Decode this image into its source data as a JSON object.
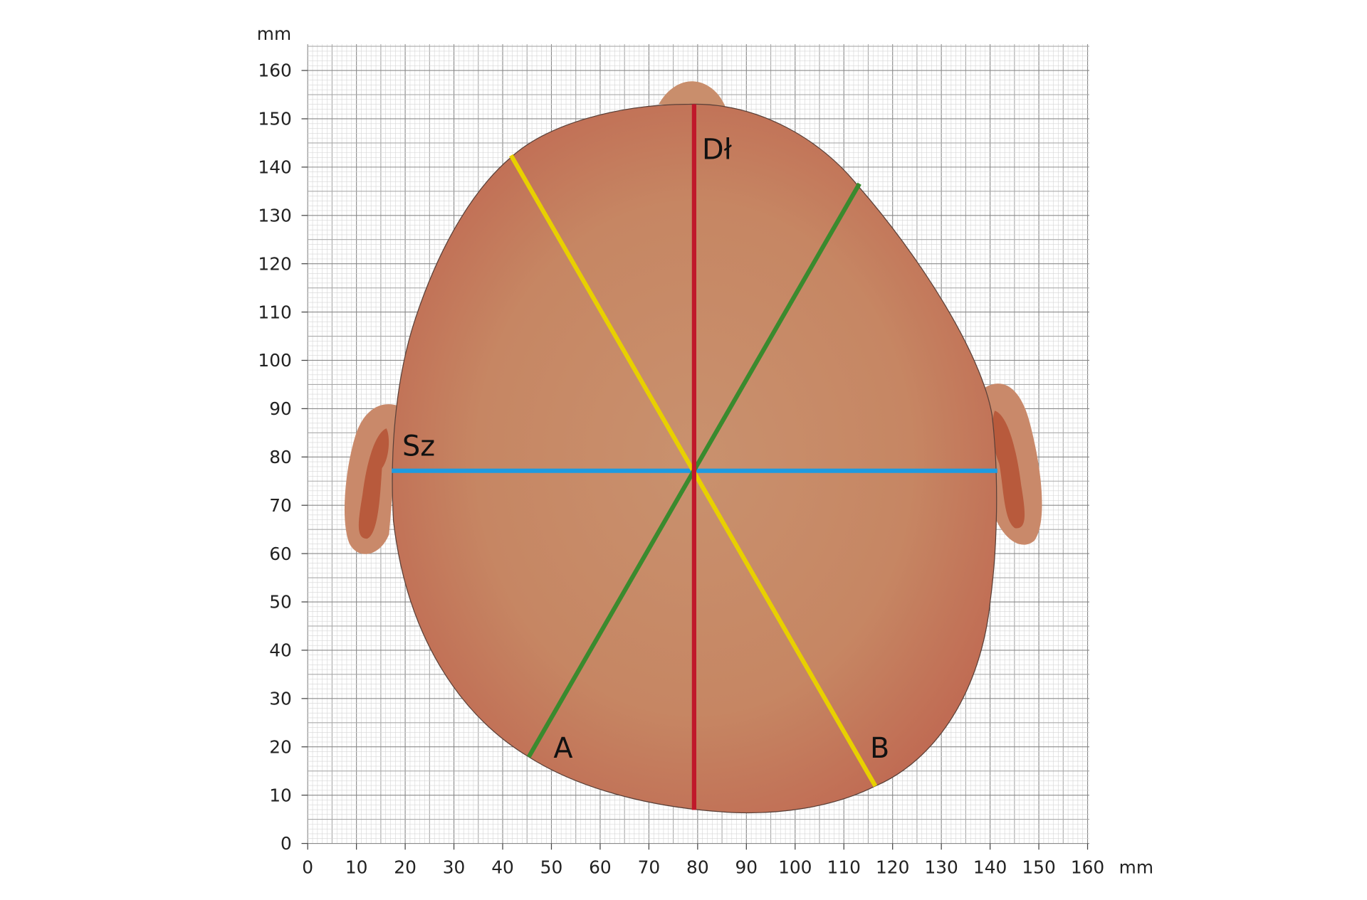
{
  "y_axis": {
    "unit": "mm",
    "ticks": [
      0,
      10,
      20,
      30,
      40,
      50,
      60,
      70,
      80,
      90,
      100,
      110,
      120,
      130,
      140,
      150,
      160
    ]
  },
  "x_axis": {
    "unit": "mm",
    "ticks": [
      0,
      10,
      20,
      30,
      40,
      50,
      60,
      70,
      80,
      90,
      100,
      110,
      120,
      130,
      140,
      150,
      160
    ]
  },
  "labels": {
    "length": "Dł",
    "width": "Sz",
    "diagonal_a": "A",
    "diagonal_b": "B"
  }
}
